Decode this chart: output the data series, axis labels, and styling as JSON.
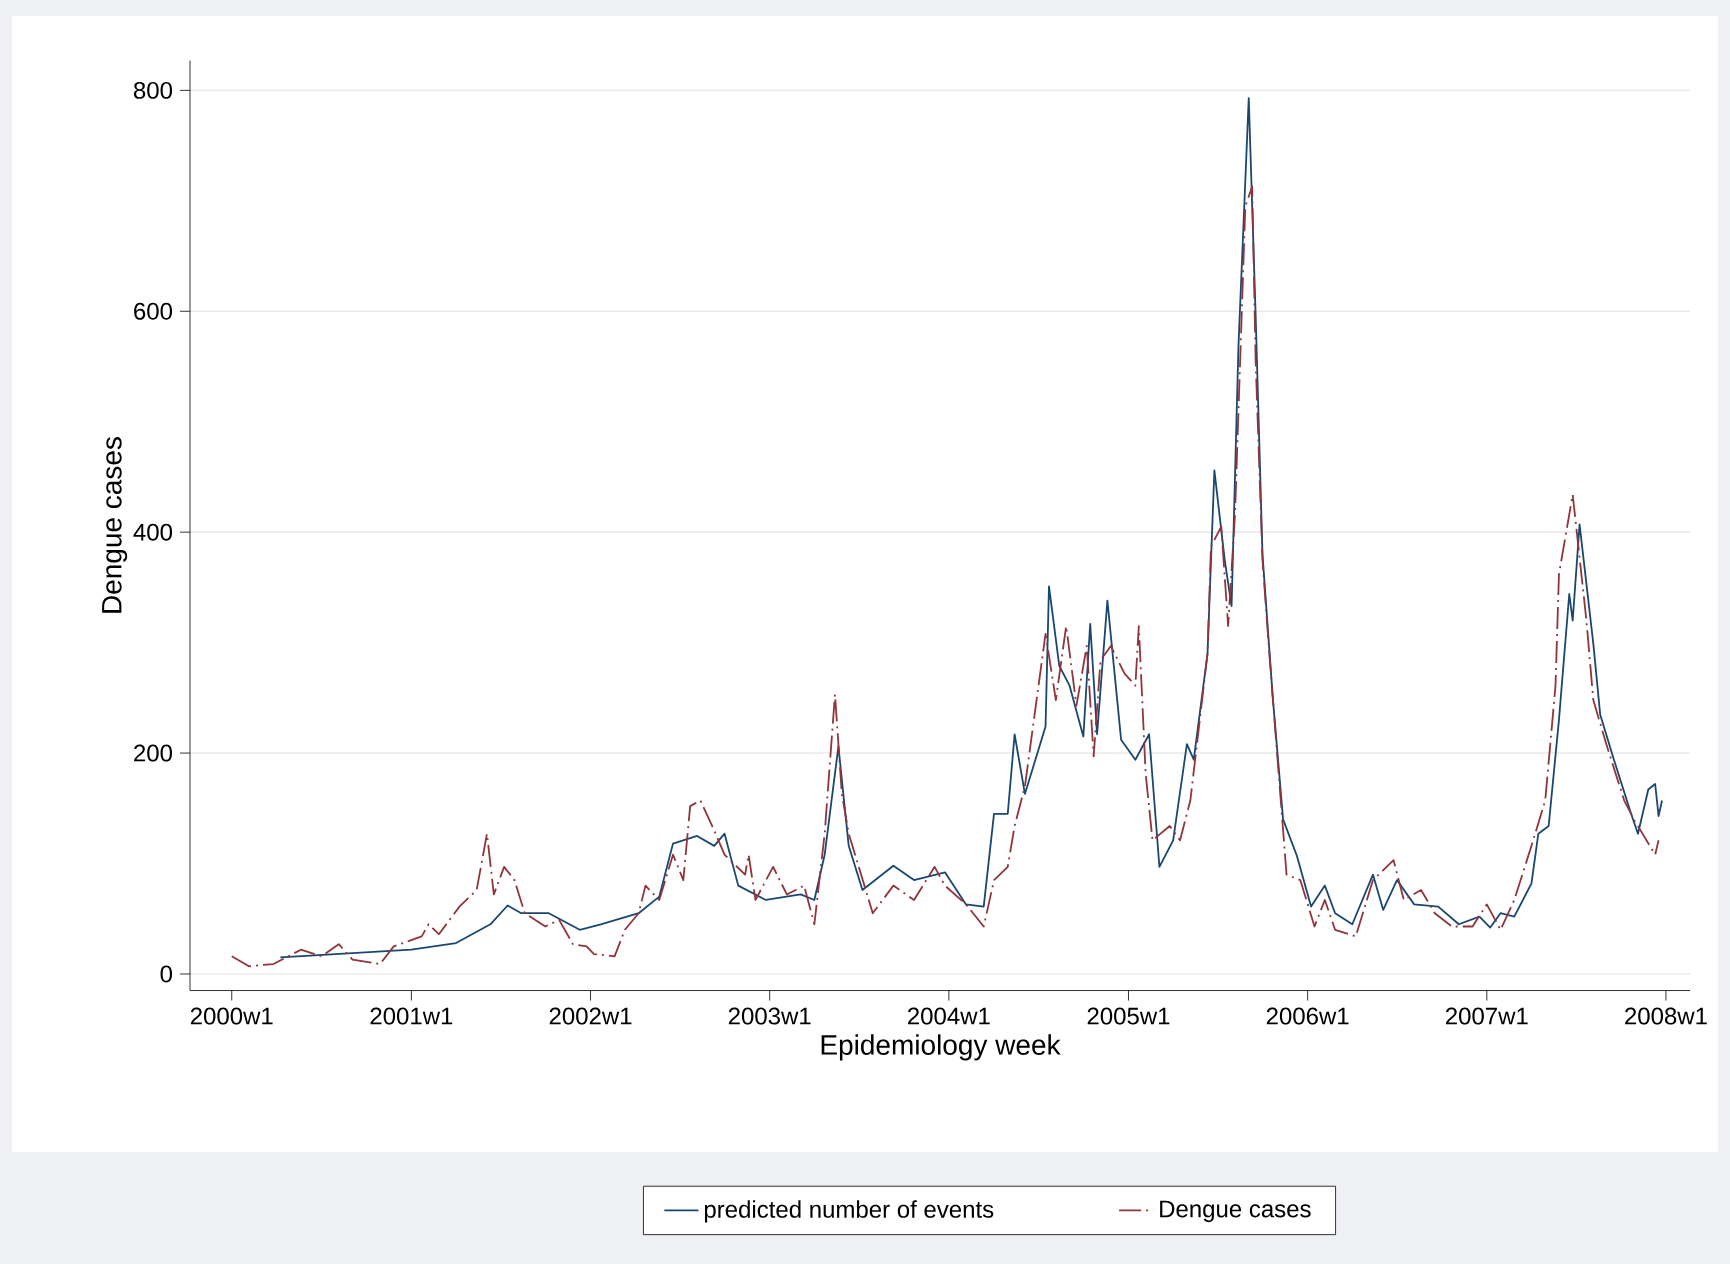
{
  "chart_data": {
    "type": "line",
    "xlabel": "Epidemiology week",
    "ylabel": "Dengue cases",
    "xlim": [
      "1999-10-08",
      "2008-02-19"
    ],
    "ylim": [
      -15,
      827
    ],
    "xticks": [
      {
        "value": "2000-01-01",
        "label": "2000w1"
      },
      {
        "value": "2001-01-01",
        "label": "2001w1"
      },
      {
        "value": "2002-01-01",
        "label": "2002w1"
      },
      {
        "value": "2003-01-01",
        "label": "2003w1"
      },
      {
        "value": "2004-01-01",
        "label": "2004w1"
      },
      {
        "value": "2005-01-01",
        "label": "2005w1"
      },
      {
        "value": "2006-01-01",
        "label": "2006w1"
      },
      {
        "value": "2007-01-01",
        "label": "2007w1"
      },
      {
        "value": "2008-01-01",
        "label": "2008w1"
      }
    ],
    "yticks": [
      0,
      200,
      400,
      600,
      800
    ],
    "grid": "y",
    "legend": "bottom",
    "series": [
      {
        "name": "predicted number of events",
        "color": "#1a476f",
        "line_style": "solid",
        "x": [
          "2000-04-09",
          "2000-07-30",
          "2001-01-01",
          "2001-04-02",
          "2001-06-11",
          "2001-07-16",
          "2001-08-13",
          "2001-10-08",
          "2001-12-10",
          "2002-01-22",
          "2002-04-09",
          "2002-05-21",
          "2002-06-18",
          "2002-08-06",
          "2002-09-10",
          "2002-10-01",
          "2002-10-29",
          "2002-12-24",
          "2003-03-05",
          "2003-04-02",
          "2003-04-23",
          "2003-05-21",
          "2003-06-11",
          "2003-07-09",
          "2003-09-10",
          "2003-10-22",
          "2003-12-24",
          "2004-02-05",
          "2004-03-12",
          "2004-04-02",
          "2004-04-30",
          "2004-05-14",
          "2004-06-04",
          "2004-07-16",
          "2004-07-23",
          "2004-08-13",
          "2004-09-03",
          "2004-10-01",
          "2004-10-15",
          "2004-10-29",
          "2004-11-19",
          "2004-12-17",
          "2005-01-15",
          "2005-02-12",
          "2005-03-05",
          "2005-04-02",
          "2005-04-30",
          "2005-05-14",
          "2005-06-11",
          "2005-06-25",
          "2005-07-16",
          "2005-07-30",
          "2005-08-13",
          "2005-09-03",
          "2005-09-17",
          "2005-10-01",
          "2005-10-22",
          "2005-11-12",
          "2005-12-10",
          "2006-01-08",
          "2006-02-05",
          "2006-02-26",
          "2006-04-02",
          "2006-05-14",
          "2006-06-04",
          "2006-07-02",
          "2006-08-06",
          "2006-09-24",
          "2006-11-05",
          "2006-12-17",
          "2007-01-08",
          "2007-01-29",
          "2007-02-26",
          "2007-04-02",
          "2007-04-16",
          "2007-05-07",
          "2007-05-28",
          "2007-06-18",
          "2007-06-25",
          "2007-07-09",
          "2007-08-06",
          "2007-08-20",
          "2007-09-17",
          "2007-10-22",
          "2007-11-05",
          "2007-11-26",
          "2007-12-10",
          "2007-12-17",
          "2007-12-24"
        ],
        "values": [
          15,
          18,
          22,
          28,
          45,
          62,
          55,
          55,
          40,
          45,
          55,
          70,
          118,
          125,
          116,
          127,
          80,
          67,
          72,
          67,
          108,
          206,
          116,
          76,
          98,
          85,
          92,
          63,
          61,
          145,
          145,
          217,
          163,
          224,
          351,
          279,
          261,
          215,
          317,
          217,
          338,
          212,
          194,
          217,
          97,
          121,
          208,
          194,
          290,
          456,
          375,
          333,
          568,
          793,
          597,
          380,
          250,
          140,
          107,
          61,
          80,
          55,
          45,
          90,
          58,
          85,
          63,
          61,
          45,
          52,
          42,
          55,
          52,
          82,
          127,
          134,
          230,
          344,
          320,
          407,
          299,
          235,
          194,
          145,
          127,
          167,
          172,
          143,
          157
        ]
      },
      {
        "name": "Dengue cases",
        "color": "#90353b",
        "line_style": "dashdot",
        "x": [
          "2000-01-01",
          "2000-02-05",
          "2000-03-26",
          "2000-05-21",
          "2000-07-02",
          "2000-08-06",
          "2000-09-03",
          "2000-10-29",
          "2000-11-26",
          "2001-01-22",
          "2001-02-05",
          "2001-02-26",
          "2001-04-09",
          "2001-05-14",
          "2001-06-04",
          "2001-06-18",
          "2001-07-09",
          "2001-07-30",
          "2001-08-20",
          "2001-10-01",
          "2001-10-29",
          "2001-11-26",
          "2001-12-24",
          "2002-01-08",
          "2002-02-19",
          "2002-03-12",
          "2002-04-09",
          "2002-04-23",
          "2002-05-21",
          "2002-06-18",
          "2002-07-09",
          "2002-07-23",
          "2002-08-13",
          "2002-09-10",
          "2002-10-01",
          "2002-11-12",
          "2002-11-19",
          "2002-12-03",
          "2003-01-08",
          "2003-02-05",
          "2003-03-12",
          "2003-04-02",
          "2003-04-23",
          "2003-05-14",
          "2003-05-28",
          "2003-06-11",
          "2003-07-30",
          "2003-09-10",
          "2003-10-22",
          "2003-12-03",
          "2003-12-24",
          "2004-02-05",
          "2004-03-12",
          "2004-04-02",
          "2004-04-30",
          "2004-05-14",
          "2004-06-04",
          "2004-07-16",
          "2004-08-06",
          "2004-08-27",
          "2004-09-17",
          "2004-10-08",
          "2004-10-22",
          "2004-11-05",
          "2004-11-26",
          "2004-12-24",
          "2005-01-15",
          "2005-01-22",
          "2005-02-05",
          "2005-02-19",
          "2005-03-26",
          "2005-04-16",
          "2005-05-07",
          "2005-06-11",
          "2005-06-18",
          "2005-07-09",
          "2005-07-23",
          "2005-08-06",
          "2005-08-27",
          "2005-09-10",
          "2005-09-17",
          "2005-10-01",
          "2005-10-15",
          "2005-11-19",
          "2005-12-17",
          "2006-01-15",
          "2006-02-05",
          "2006-02-26",
          "2006-04-09",
          "2006-05-14",
          "2006-06-25",
          "2006-07-16",
          "2006-08-20",
          "2006-09-17",
          "2006-10-22",
          "2006-12-03",
          "2007-01-01",
          "2007-01-29",
          "2007-02-26",
          "2007-04-02",
          "2007-04-30",
          "2007-05-21",
          "2007-05-28",
          "2007-06-25",
          "2007-07-23",
          "2007-08-06",
          "2007-09-03",
          "2007-10-08",
          "2007-10-29",
          "2007-12-10",
          "2007-12-17"
        ],
        "values": [
          16,
          7,
          9,
          22,
          16,
          27,
          13,
          9,
          25,
          34,
          45,
          36,
          61,
          76,
          127,
          72,
          97,
          85,
          55,
          43,
          49,
          27,
          25,
          18,
          16,
          40,
          55,
          80,
          67,
          108,
          85,
          152,
          157,
          130,
          108,
          90,
          108,
          67,
          97,
          72,
          80,
          45,
          127,
          253,
          163,
          127,
          55,
          80,
          67,
          97,
          80,
          63,
          43,
          85,
          97,
          134,
          170,
          308,
          248,
          315,
          243,
          297,
          197,
          284,
          297,
          272,
          261,
          315,
          181,
          121,
          134,
          121,
          157,
          290,
          387,
          405,
          315,
          416,
          695,
          713,
          556,
          375,
          290,
          90,
          85,
          43,
          67,
          40,
          34,
          85,
          103,
          67,
          76,
          55,
          43,
          43,
          63,
          40,
          67,
          116,
          157,
          261,
          362,
          434,
          320,
          248,
          206,
          157,
          139,
          108,
          121
        ]
      }
    ]
  }
}
